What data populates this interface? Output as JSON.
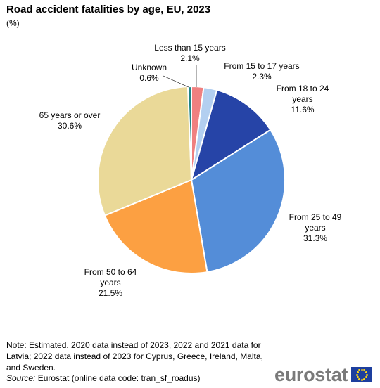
{
  "chart_data": {
    "type": "pie",
    "title": "Road accident fatalities by age, EU, 2023",
    "subtitle": "(%)",
    "slices": [
      {
        "label": "Less than 15 years",
        "value": 2.1,
        "value_label": "2.1%",
        "color": "#F08080"
      },
      {
        "label": "From 15 to 17 years",
        "value": 2.3,
        "value_label": "2.3%",
        "color": "#B3CFF0"
      },
      {
        "label": "From 18 to 24 years",
        "value": 11.6,
        "value_label": "11.6%",
        "color": "#2644A7"
      },
      {
        "label": "From 25 to 49 years",
        "value": 31.3,
        "value_label": "31.3%",
        "color": "#548DD8"
      },
      {
        "label": "From 50 to 64 years",
        "value": 21.5,
        "value_label": "21.5%",
        "color": "#FCA042"
      },
      {
        "label": "65 years or over",
        "value": 30.6,
        "value_label": "30.6%",
        "color": "#EAD998"
      },
      {
        "label": "Unknown",
        "value": 0.6,
        "value_label": "0.6%",
        "color": "#208486"
      }
    ]
  },
  "footer": {
    "note": "Note: Estimated. 2020 data instead of 2023, 2022 and 2021 data for Latvia; 2022 data instead of 2023 for Cyprus, Greece, Ireland, Malta, and Sweden.",
    "source_label": "Source:",
    "source_text": "Eurostat (online data code: tran_sf_roadus)"
  },
  "logo": {
    "text": "eurostat"
  }
}
